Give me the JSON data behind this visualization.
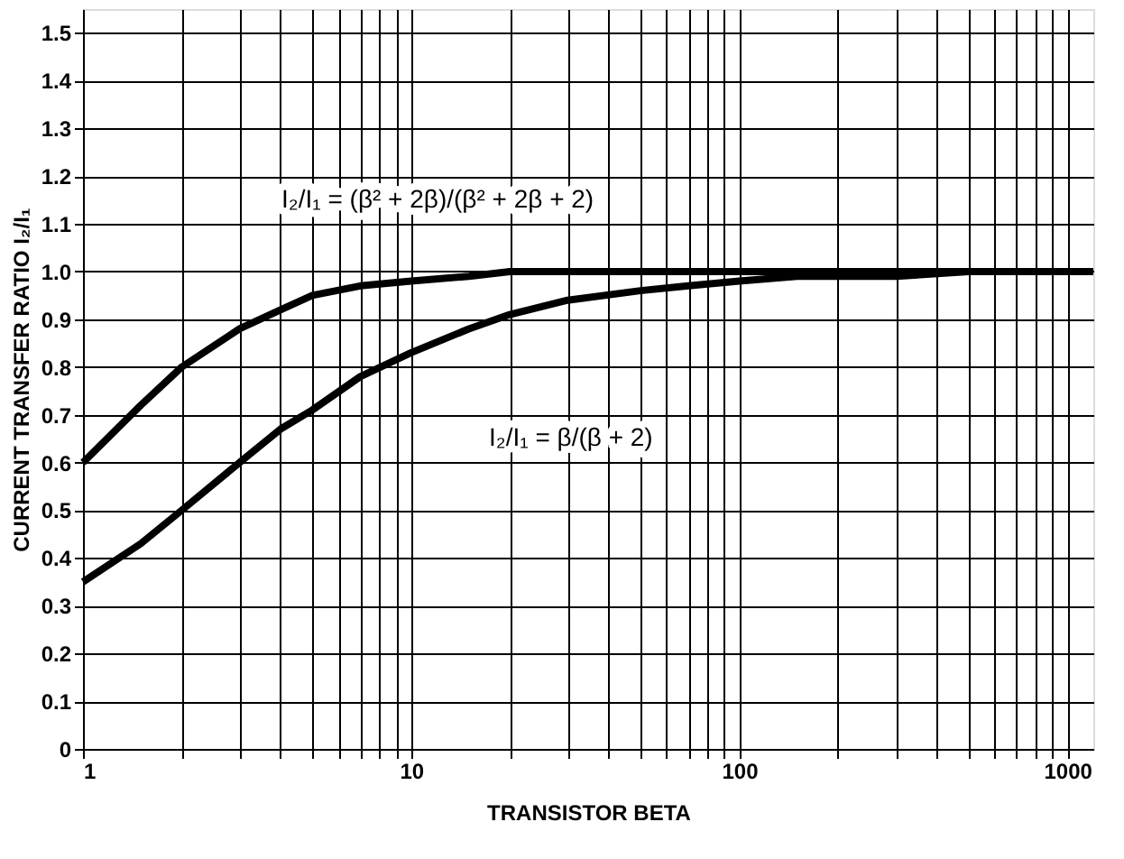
{
  "chart_data": {
    "type": "line",
    "xlabel": "TRANSISTOR BETA",
    "ylabel": "CURRENT TRANSFER RATIO I₂/I₁",
    "annotations": [
      "I₂/I₁ = (β² + 2β)/(β² + 2β + 2)",
      "I₂/I₁ = β/(β + 2)"
    ],
    "log": "x",
    "grid": true,
    "marker": "none",
    "line_style": "solid",
    "xlim": [
      1,
      1200
    ],
    "xticks": [
      1,
      {
        "value": 2,
        "label": null
      },
      {
        "value": 3,
        "label": null
      },
      {
        "value": 4,
        "label": null
      },
      {
        "value": 5,
        "label": null
      },
      {
        "value": 6,
        "label": null
      },
      {
        "value": 7,
        "label": null
      },
      {
        "value": 8,
        "label": null
      },
      {
        "value": 9,
        "label": null
      },
      10,
      {
        "value": 20,
        "label": null
      },
      {
        "value": 30,
        "label": null
      },
      {
        "value": 40,
        "label": null
      },
      {
        "value": 50,
        "label": null
      },
      {
        "value": 60,
        "label": null
      },
      {
        "value": 70,
        "label": null
      },
      {
        "value": 80,
        "label": null
      },
      {
        "value": 90,
        "label": null
      },
      100,
      {
        "value": 200,
        "label": null
      },
      {
        "value": 300,
        "label": null
      },
      {
        "value": 400,
        "label": null
      },
      {
        "value": 500,
        "label": null
      },
      {
        "value": 600,
        "label": null
      },
      {
        "value": 700,
        "label": null
      },
      {
        "value": 800,
        "label": null
      },
      {
        "value": 900,
        "label": null
      },
      1000
    ],
    "ylim": [
      0,
      1.55
    ],
    "yticks": [
      0,
      0.1,
      0.2,
      0.3,
      0.4,
      0.5,
      0.6,
      0.7,
      0.8,
      0.9,
      {
        "value": 1.0,
        "label": "1.0"
      },
      1.1,
      1.2,
      1.3,
      1.4,
      1.5
    ],
    "series": [
      {
        "color": "#000000",
        "x": [
          1,
          1.5,
          2,
          3,
          4,
          5,
          7,
          10,
          15,
          20,
          30,
          50,
          100,
          1000,
          1200
        ],
        "values": [
          0.6,
          0.72,
          0.8,
          0.88,
          0.92,
          0.95,
          0.97,
          0.98,
          0.99,
          1.0,
          1.0,
          1.0,
          1.0,
          1.0,
          1.0
        ]
      },
      {
        "color": "#000000",
        "x": [
          1,
          1.5,
          2,
          3,
          4,
          5,
          7,
          10,
          15,
          20,
          30,
          50,
          70,
          100,
          150,
          200,
          300,
          500,
          1000,
          1200
        ],
        "values": [
          0.35,
          0.43,
          0.5,
          0.6,
          0.67,
          0.71,
          0.78,
          0.83,
          0.88,
          0.91,
          0.94,
          0.96,
          0.97,
          0.98,
          0.99,
          0.99,
          0.99,
          1.0,
          1.0,
          1.0
        ]
      }
    ]
  }
}
